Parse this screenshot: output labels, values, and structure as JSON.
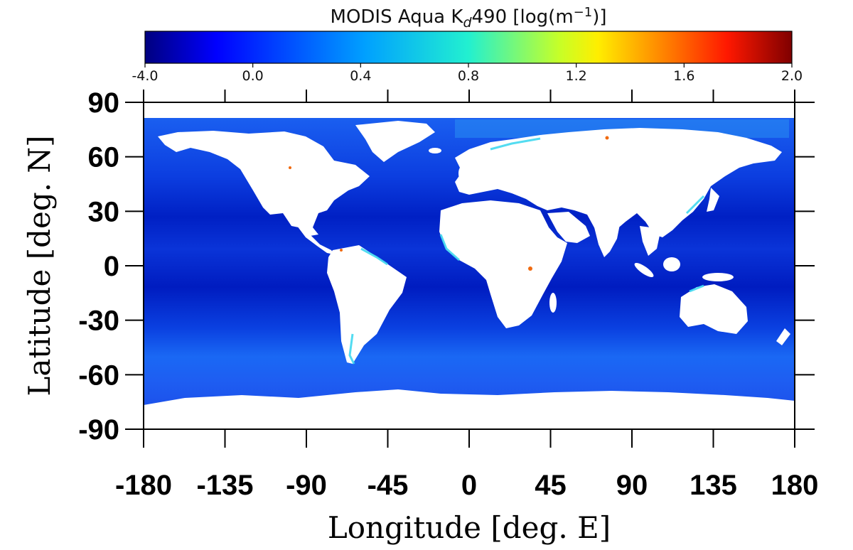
{
  "colorbar": {
    "title_main": "MODIS Aqua K",
    "title_sub": "d",
    "title_tail": "490 [log(m",
    "title_sup": "−1",
    "title_close": ")]",
    "ticks": [
      "-4.0",
      "0.0",
      "0.4",
      "0.8",
      "1.2",
      "1.6",
      "2.0"
    ],
    "colormap": "jet",
    "range": [
      -4.0,
      2.0
    ]
  },
  "chart_data": {
    "type": "heatmap",
    "variable": "MODIS Aqua Kd490 [log(m−1)]",
    "xlabel": "Longitude [deg. E]",
    "ylabel": "Latitude [deg. N]",
    "xlim": [
      -180,
      180
    ],
    "ylim": [
      -90,
      90
    ],
    "x_ticks": [
      "-180",
      "-135",
      "-90",
      "-45",
      "0",
      "45",
      "90",
      "135",
      "180"
    ],
    "y_ticks": [
      "90",
      "60",
      "30",
      "0",
      "-30",
      "-60",
      "-90"
    ],
    "x_tick_values": [
      -180,
      -135,
      -90,
      -45,
      0,
      45,
      90,
      135,
      180
    ],
    "y_tick_values": [
      90,
      60,
      30,
      0,
      -30,
      -60,
      -90
    ],
    "colors": {
      "open_ocean": "#0a2cd8",
      "oligotrophic_gyre": "#0016b8",
      "southern_ocean": "#1660f0",
      "coastal": "#3ad0f0",
      "high_turbidity": "#f06a10",
      "land_no_data": "#ffffff"
    }
  }
}
